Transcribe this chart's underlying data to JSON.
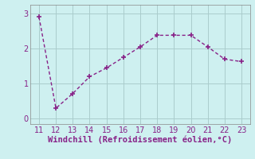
{
  "x": [
    11,
    12,
    13,
    14,
    15,
    16,
    17,
    18,
    19,
    20,
    21,
    22,
    23
  ],
  "y": [
    2.9,
    0.3,
    0.72,
    1.2,
    1.45,
    1.75,
    2.05,
    2.38,
    2.38,
    2.38,
    2.05,
    1.7,
    1.63
  ],
  "line_color": "#882288",
  "marker": "+",
  "marker_size": 4,
  "marker_linewidth": 1.2,
  "line_style": "--",
  "line_width": 1.0,
  "xlabel": "Windchill (Refroidissement éolien,°C)",
  "xlabel_color": "#882288",
  "xlabel_fontsize": 7.5,
  "background_color": "#cef0f0",
  "grid_color": "#aacccc",
  "xlim": [
    10.5,
    23.5
  ],
  "ylim": [
    -0.15,
    3.25
  ],
  "yticks": [
    0,
    1,
    2,
    3
  ],
  "xticks": [
    11,
    12,
    13,
    14,
    15,
    16,
    17,
    18,
    19,
    20,
    21,
    22,
    23
  ],
  "tick_fontsize": 7,
  "tick_color": "#882288",
  "spine_color": "#888888"
}
